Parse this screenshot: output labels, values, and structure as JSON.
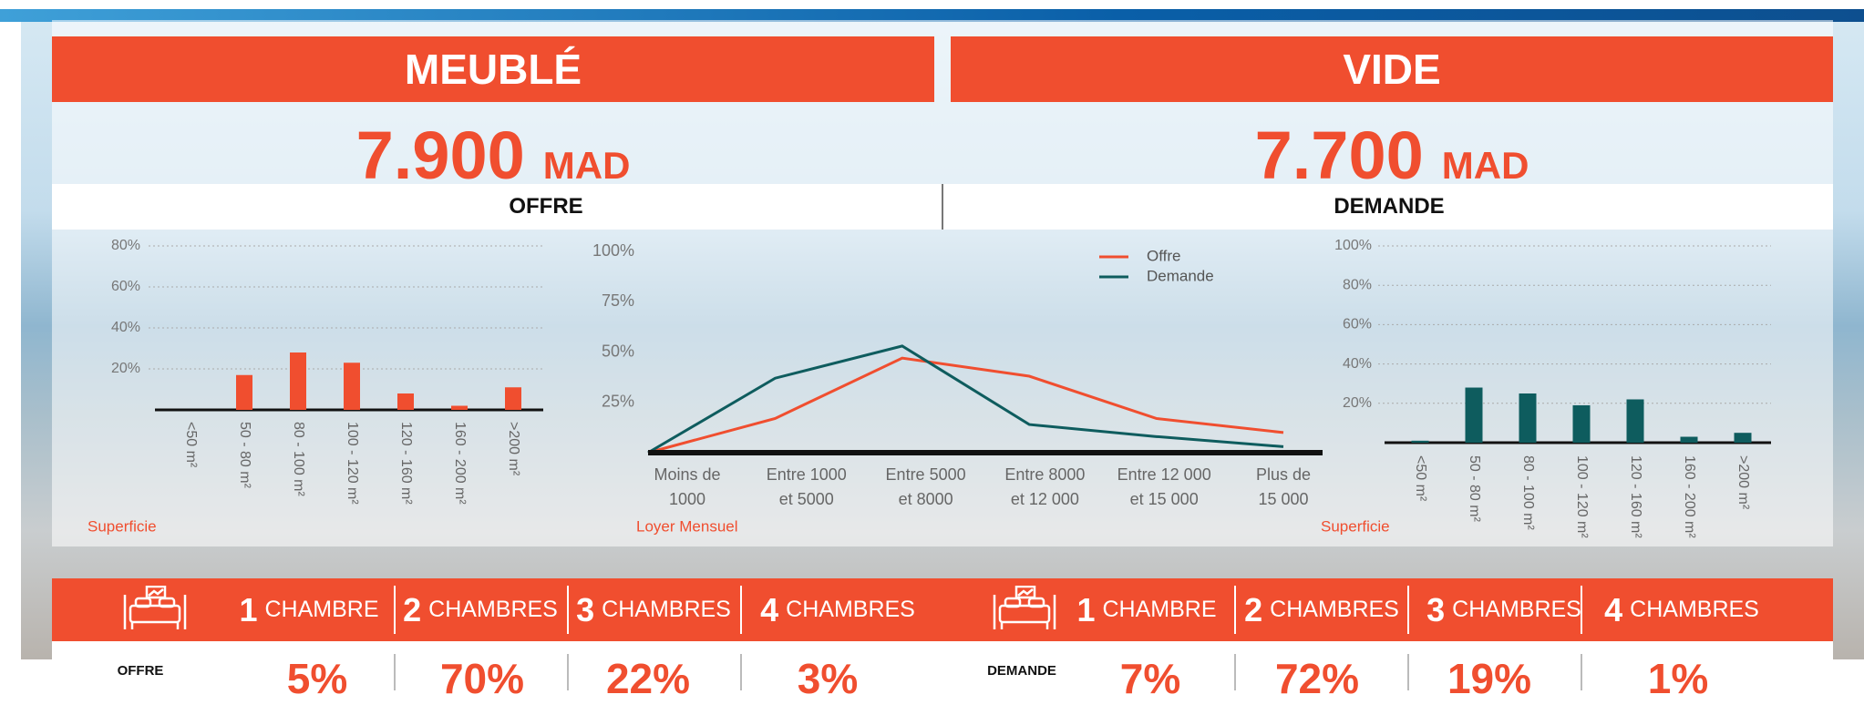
{
  "header": {
    "left_title": "MEUBLÉ",
    "right_title": "VIDE"
  },
  "prices": [
    {
      "amount": "7.900",
      "currency": "MAD"
    },
    {
      "amount": "7.700",
      "currency": "MAD"
    }
  ],
  "section_labels": [
    "OFFRE",
    "DEMANDE"
  ],
  "chart_data": [
    {
      "type": "bar",
      "categories": [
        "<50 m²",
        "50 - 80 m²",
        "80 - 100 m²",
        "100 - 120 m²",
        "120 - 160 m²",
        "160 - 200 m²",
        ">200 m²"
      ],
      "values": [
        0,
        17,
        28,
        23,
        8,
        2,
        11
      ],
      "color": "#f04e2f",
      "ylim": [
        0,
        80
      ],
      "yticks": [
        {
          "value": 20,
          "label": "20%"
        },
        {
          "value": 40,
          "label": "40%"
        },
        {
          "value": 60,
          "label": "60%"
        },
        {
          "value": 80,
          "label": "80%"
        }
      ],
      "xlabel": "Superficie",
      "grid": true
    },
    {
      "type": "line",
      "categories": [
        "Moins de\n1000",
        "Entre 1000\net 5000",
        "Entre 5000\net 8000",
        "Entre 8000\net 12 000",
        "Entre 12 000\net 15 000",
        "Plus de\n15 000"
      ],
      "series": [
        {
          "name": "Offre",
          "color": "#f04e2f",
          "values": [
            0,
            17,
            47,
            38,
            17,
            10
          ]
        },
        {
          "name": "Demande",
          "color": "#0e5c5e",
          "values": [
            0,
            37,
            53,
            14,
            8,
            3
          ]
        }
      ],
      "ylim": [
        0,
        100
      ],
      "yticks": [
        {
          "value": 25,
          "label": "25%"
        },
        {
          "value": 50,
          "label": "50%"
        },
        {
          "value": 75,
          "label": "75%"
        },
        {
          "value": 100,
          "label": "100%"
        }
      ],
      "xlabel": "Loyer Mensuel",
      "legend": "upper right",
      "grid": false
    },
    {
      "type": "bar",
      "categories": [
        "<50 m²",
        "50 - 80 m²",
        "80 - 100 m²",
        "100 - 120 m²",
        "120 - 160 m²",
        "160 - 200 m²",
        ">200 m²"
      ],
      "values": [
        1,
        28,
        25,
        19,
        22,
        3,
        5
      ],
      "color": "#0e5c5e",
      "ylim": [
        0,
        100
      ],
      "yticks": [
        {
          "value": 20,
          "label": "20%"
        },
        {
          "value": 40,
          "label": "40%"
        },
        {
          "value": 60,
          "label": "60%"
        },
        {
          "value": 80,
          "label": "80%"
        },
        {
          "value": 100,
          "label": "100%"
        }
      ],
      "xlabel": "Superficie",
      "grid": true
    }
  ],
  "rooms": [
    {
      "row_label": "OFFRE",
      "columns": [
        {
          "number": "1",
          "label": "CHAMBRE",
          "value": "5%"
        },
        {
          "number": "2",
          "label": "CHAMBRES",
          "value": "70%"
        },
        {
          "number": "3",
          "label": "CHAMBRES",
          "value": "22%"
        },
        {
          "number": "4",
          "label": "CHAMBRES",
          "value": "3%"
        }
      ]
    },
    {
      "row_label": "DEMANDE",
      "columns": [
        {
          "number": "1",
          "label": "CHAMBRE",
          "value": "7%"
        },
        {
          "number": "2",
          "label": "CHAMBRES",
          "value": "72%"
        },
        {
          "number": "3",
          "label": "CHAMBRES",
          "value": "19%"
        },
        {
          "number": "4",
          "label": "CHAMBRES",
          "value": "1%"
        }
      ]
    }
  ]
}
